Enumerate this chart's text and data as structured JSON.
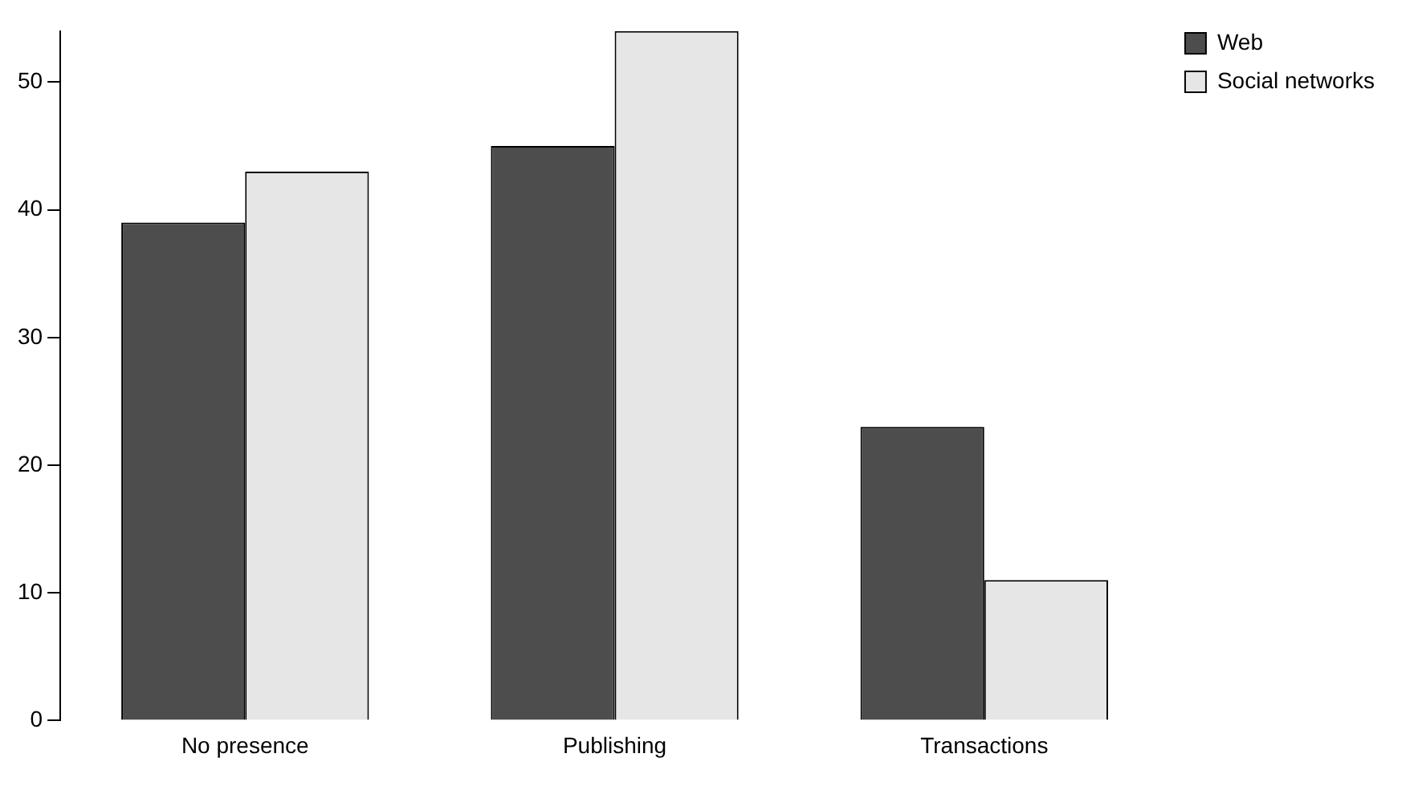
{
  "chart_data": {
    "type": "bar",
    "categories": [
      "No presence",
      "Publishing",
      "Transactions"
    ],
    "series": [
      {
        "name": "Web",
        "color": "#4d4d4d",
        "values": [
          39,
          45,
          23
        ]
      },
      {
        "name": "Social networks",
        "color": "#e6e6e6",
        "values": [
          43,
          54,
          11
        ]
      }
    ],
    "ylim": [
      0,
      54
    ],
    "yticks": [
      0,
      10,
      20,
      30,
      40,
      50
    ],
    "grid": false,
    "legend": "top right"
  }
}
